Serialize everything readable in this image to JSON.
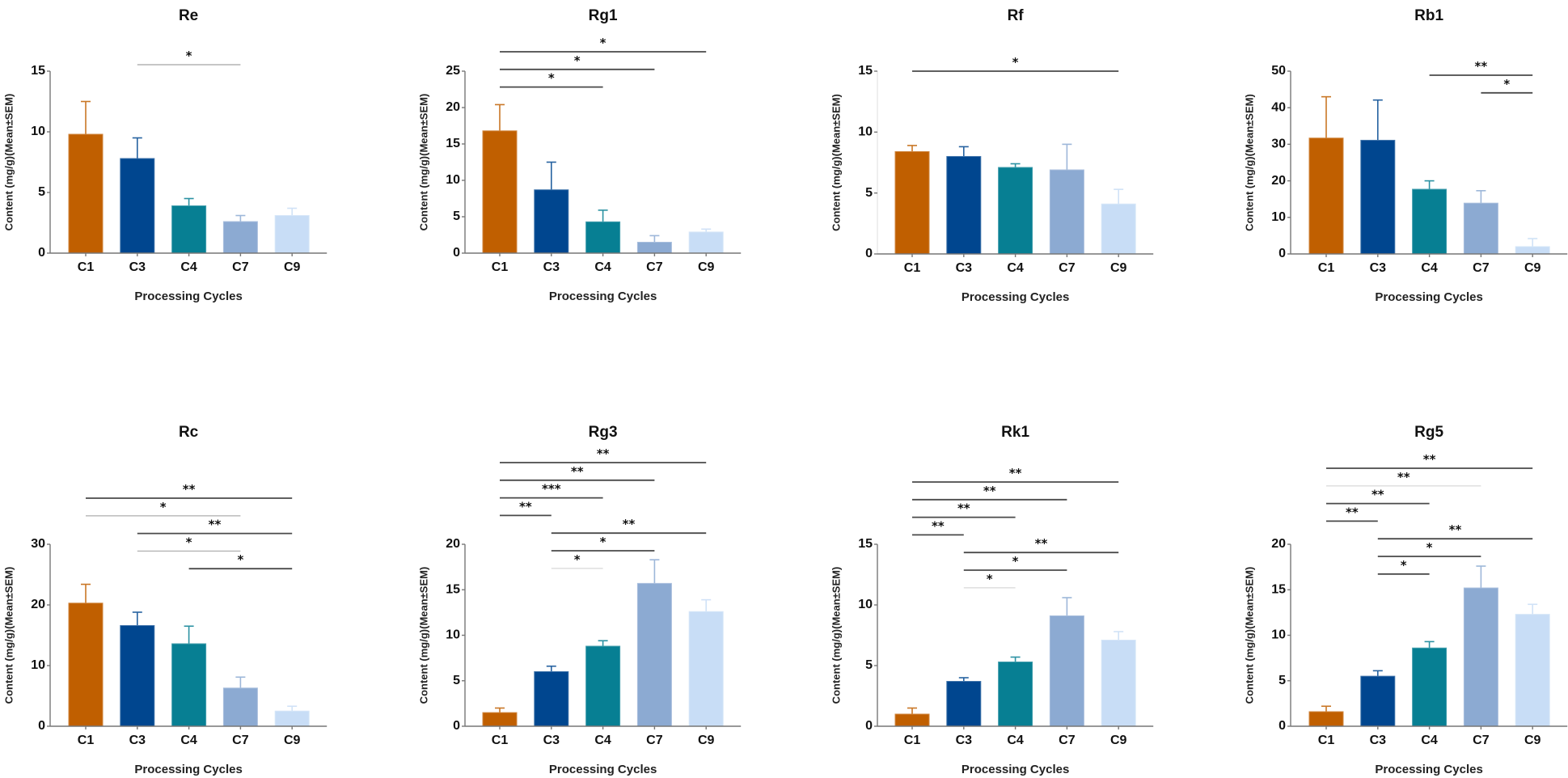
{
  "figure": {
    "category_colors": {
      "C1": "#C05F00",
      "C3": "#00468F",
      "C4": "#077F93",
      "C7": "#8CAAD2",
      "C9": "#C8DDF6"
    },
    "significance_shades": {
      "dark": "#4a4a4a",
      "light": "#b4b4b4",
      "faint": "#dcdcdc"
    }
  },
  "chart_data": [
    {
      "type": "bar",
      "title": "Re",
      "xlabel": "Processing Cycles",
      "ylabel": "Content (mg/g)(Mean±SEM)",
      "categories": [
        "C1",
        "C3",
        "C4",
        "C7",
        "C9"
      ],
      "values": [
        9.8,
        7.8,
        3.9,
        2.6,
        3.1
      ],
      "error_upper": [
        12.5,
        9.5,
        4.5,
        3.1,
        3.7
      ],
      "ylim": [
        0,
        15
      ],
      "yticks": [
        0,
        5,
        10,
        15
      ],
      "grid": false,
      "significance": [
        {
          "from": "C3",
          "to": "C7",
          "label": "*",
          "shade": "light"
        }
      ]
    },
    {
      "type": "bar",
      "title": "Rg1",
      "xlabel": "Processing Cycles",
      "ylabel": "Content (mg/g)(Mean±SEM)",
      "categories": [
        "C1",
        "C3",
        "C4",
        "C7",
        "C9"
      ],
      "values": [
        16.8,
        8.7,
        4.3,
        1.5,
        2.9
      ],
      "error_upper": [
        20.4,
        12.5,
        5.9,
        2.4,
        3.3
      ],
      "ylim": [
        0,
        25
      ],
      "yticks": [
        0,
        5,
        10,
        15,
        20,
        25
      ],
      "grid": false,
      "significance": [
        {
          "from": "C1",
          "to": "C9",
          "label": "*",
          "shade": "dark"
        },
        {
          "from": "C1",
          "to": "C7",
          "label": "*",
          "shade": "dark"
        },
        {
          "from": "C1",
          "to": "C4",
          "label": "*",
          "shade": "dark"
        }
      ]
    },
    {
      "type": "bar",
      "title": "Rf",
      "xlabel": "Processing Cycles",
      "ylabel": "Content (mg/g)(Mean±SEM)",
      "categories": [
        "C1",
        "C3",
        "C4",
        "C7",
        "C9"
      ],
      "values": [
        8.4,
        8.0,
        7.1,
        6.9,
        4.1
      ],
      "error_upper": [
        8.9,
        8.8,
        7.4,
        9.0,
        5.3
      ],
      "ylim": [
        0,
        15
      ],
      "yticks": [
        0,
        5,
        10,
        15
      ],
      "grid": false,
      "significance": [
        {
          "from": "C1",
          "to": "C9",
          "label": "*",
          "shade": "dark"
        }
      ]
    },
    {
      "type": "bar",
      "title": "Rb1",
      "xlabel": "Processing Cycles",
      "ylabel": "Content (mg/g)(Mean±SEM)",
      "categories": [
        "C1",
        "C3",
        "C4",
        "C7",
        "C9"
      ],
      "values": [
        31.7,
        31.1,
        17.7,
        13.9,
        2.0
      ],
      "error_upper": [
        43.0,
        42.1,
        20.0,
        17.3,
        4.2
      ],
      "ylim": [
        0,
        50
      ],
      "yticks": [
        0,
        10,
        20,
        30,
        40,
        50
      ],
      "grid": false,
      "significance": [
        {
          "from": "C4",
          "to": "C9",
          "label": "**",
          "shade": "dark"
        },
        {
          "from": "C7",
          "to": "C9",
          "label": "*",
          "shade": "dark"
        }
      ]
    },
    {
      "type": "bar",
      "title": "Rc",
      "xlabel": "Processing Cycles",
      "ylabel": "Content (mg/g)(Mean±SEM)",
      "categories": [
        "C1",
        "C3",
        "C4",
        "C7",
        "C9"
      ],
      "values": [
        20.3,
        16.6,
        13.6,
        6.3,
        2.5
      ],
      "error_upper": [
        23.4,
        18.8,
        16.5,
        8.1,
        3.3
      ],
      "ylim": [
        0,
        30
      ],
      "yticks": [
        0,
        10,
        20,
        30
      ],
      "grid": false,
      "significance": [
        {
          "from": "C1",
          "to": "C9",
          "label": "**",
          "shade": "dark"
        },
        {
          "from": "C1",
          "to": "C7",
          "label": "*",
          "shade": "light"
        },
        {
          "from": "C3",
          "to": "C9",
          "label": "**",
          "shade": "dark"
        },
        {
          "from": "C3",
          "to": "C7",
          "label": "*",
          "shade": "light"
        },
        {
          "from": "C4",
          "to": "C9",
          "label": "*",
          "shade": "dark"
        }
      ]
    },
    {
      "type": "bar",
      "title": "Rg3",
      "xlabel": "Processing Cycles",
      "ylabel": "Content (mg/g)(Mean±SEM)",
      "categories": [
        "C1",
        "C3",
        "C4",
        "C7",
        "C9"
      ],
      "values": [
        1.5,
        6.0,
        8.8,
        15.7,
        12.6
      ],
      "error_upper": [
        2.0,
        6.6,
        9.4,
        18.3,
        13.9
      ],
      "ylim": [
        0,
        20
      ],
      "yticks": [
        0,
        5,
        10,
        15,
        20
      ],
      "grid": false,
      "significance": [
        {
          "from": "C1",
          "to": "C9",
          "label": "**",
          "shade": "dark"
        },
        {
          "from": "C1",
          "to": "C7",
          "label": "**",
          "shade": "dark"
        },
        {
          "from": "C1",
          "to": "C4",
          "label": "***",
          "shade": "dark"
        },
        {
          "from": "C1",
          "to": "C3",
          "label": "**",
          "shade": "dark"
        },
        {
          "from": "C3",
          "to": "C9",
          "label": "**",
          "shade": "dark"
        },
        {
          "from": "C3",
          "to": "C7",
          "label": "*",
          "shade": "dark"
        },
        {
          "from": "C3",
          "to": "C4",
          "label": "*",
          "shade": "faint"
        }
      ]
    },
    {
      "type": "bar",
      "title": "Rk1",
      "xlabel": "Processing Cycles",
      "ylabel": "Content (mg/g)(Mean±SEM)",
      "categories": [
        "C1",
        "C3",
        "C4",
        "C7",
        "C9"
      ],
      "values": [
        1.0,
        3.7,
        5.3,
        9.1,
        7.1
      ],
      "error_upper": [
        1.5,
        4.0,
        5.7,
        10.6,
        7.8
      ],
      "ylim": [
        0,
        15
      ],
      "yticks": [
        0,
        5,
        10,
        15
      ],
      "grid": false,
      "significance": [
        {
          "from": "C1",
          "to": "C9",
          "label": "**",
          "shade": "dark"
        },
        {
          "from": "C1",
          "to": "C7",
          "label": "**",
          "shade": "dark"
        },
        {
          "from": "C1",
          "to": "C4",
          "label": "**",
          "shade": "dark"
        },
        {
          "from": "C1",
          "to": "C3",
          "label": "**",
          "shade": "dark"
        },
        {
          "from": "C3",
          "to": "C9",
          "label": "**",
          "shade": "dark"
        },
        {
          "from": "C3",
          "to": "C7",
          "label": "*",
          "shade": "dark"
        },
        {
          "from": "C3",
          "to": "C4",
          "label": "*",
          "shade": "faint"
        }
      ]
    },
    {
      "type": "bar",
      "title": "Rg5",
      "xlabel": "Processing Cycles",
      "ylabel": "Content (mg/g)(Mean±SEM)",
      "categories": [
        "C1",
        "C3",
        "C4",
        "C7",
        "C9"
      ],
      "values": [
        1.6,
        5.5,
        8.6,
        15.2,
        12.3
      ],
      "error_upper": [
        2.2,
        6.1,
        9.3,
        17.6,
        13.4
      ],
      "ylim": [
        0,
        20
      ],
      "yticks": [
        0,
        5,
        10,
        15,
        20
      ],
      "grid": false,
      "significance": [
        {
          "from": "C1",
          "to": "C9",
          "label": "**",
          "shade": "dark"
        },
        {
          "from": "C1",
          "to": "C7",
          "label": "**",
          "shade": "faint"
        },
        {
          "from": "C1",
          "to": "C4",
          "label": "**",
          "shade": "dark"
        },
        {
          "from": "C1",
          "to": "C3",
          "label": "**",
          "shade": "dark"
        },
        {
          "from": "C3",
          "to": "C9",
          "label": "**",
          "shade": "dark"
        },
        {
          "from": "C3",
          "to": "C7",
          "label": "*",
          "shade": "dark"
        },
        {
          "from": "C3",
          "to": "C4",
          "label": "*",
          "shade": "dark"
        }
      ]
    }
  ]
}
